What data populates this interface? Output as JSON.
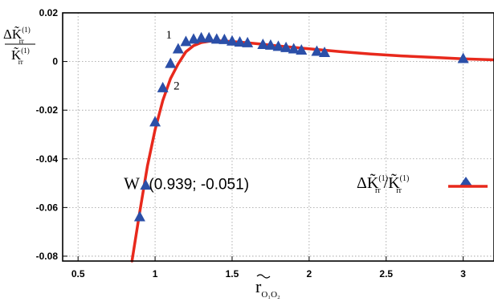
{
  "chart_data": {
    "type": "scatter",
    "title": "",
    "x_range": [
      0.4,
      3.2
    ],
    "y_range": [
      -0.082,
      0.02
    ],
    "grid": true,
    "x_ticks": [
      "0.5",
      "1",
      "1.5",
      "2",
      "2.5",
      "3"
    ],
    "y_ticks": [
      "0.02",
      "0",
      "-0.02",
      "-0.04",
      "-0.06",
      "-0.08"
    ],
    "xlabel": {
      "base": "r",
      "sub": "O₁O₂"
    },
    "ylabel": {
      "num": "ΔK̃",
      "den": "K̃",
      "sub": "rr",
      "sup": "(1)"
    },
    "legend": {
      "placement": "right",
      "entries": [
        {
          "kind": "points",
          "marker": "triangle",
          "color": "#2b4fa8"
        },
        {
          "kind": "line",
          "color": "#e8291c"
        }
      ]
    },
    "series": [
      {
        "kind": "points",
        "marker": "triangle",
        "color": "#2b4fa8",
        "x": [
          0.9,
          0.939,
          1.0,
          1.05,
          1.1,
          1.15,
          1.2,
          1.25,
          1.3,
          1.35,
          1.4,
          1.45,
          1.5,
          1.55,
          1.6,
          1.7,
          1.75,
          1.8,
          1.85,
          1.9,
          1.95,
          2.05,
          2.1,
          3.0
        ],
        "y": [
          -0.064,
          -0.051,
          -0.025,
          -0.011,
          -0.001,
          0.005,
          0.008,
          0.009,
          0.0095,
          0.0095,
          0.009,
          0.0088,
          0.0082,
          0.0078,
          0.0075,
          0.0068,
          0.0065,
          0.006,
          0.0055,
          0.005,
          0.0045,
          0.004,
          0.0035,
          0.001
        ]
      },
      {
        "kind": "line",
        "color": "#e8291c",
        "x": [
          0.85,
          0.9,
          0.95,
          1.0,
          1.05,
          1.1,
          1.15,
          1.2,
          1.25,
          1.3,
          1.35,
          1.4,
          1.45,
          1.5,
          1.6,
          1.7,
          1.8,
          1.9,
          2.0,
          2.2,
          2.4,
          2.6,
          2.8,
          3.0,
          3.2
        ],
        "y": [
          -0.082,
          -0.062,
          -0.043,
          -0.028,
          -0.016,
          -0.007,
          -0.001,
          0.004,
          0.0065,
          0.0078,
          0.0083,
          0.0085,
          0.0084,
          0.0082,
          0.0077,
          0.0071,
          0.0064,
          0.0058,
          0.0052,
          0.0041,
          0.0031,
          0.0023,
          0.0017,
          0.0011,
          0.0007
        ]
      }
    ],
    "annotations": [
      {
        "text": "1",
        "x": 1.07,
        "y": 0.0095,
        "style": "serif"
      },
      {
        "text": "2",
        "x": 1.12,
        "y": -0.0115,
        "style": "serif"
      },
      {
        "text": "W",
        "x": 0.9,
        "y": -0.0525,
        "style": "serif-large"
      },
      {
        "text": "(0.939; -0.051)",
        "x": 0.96,
        "y": -0.0525,
        "style": "sans"
      }
    ]
  }
}
